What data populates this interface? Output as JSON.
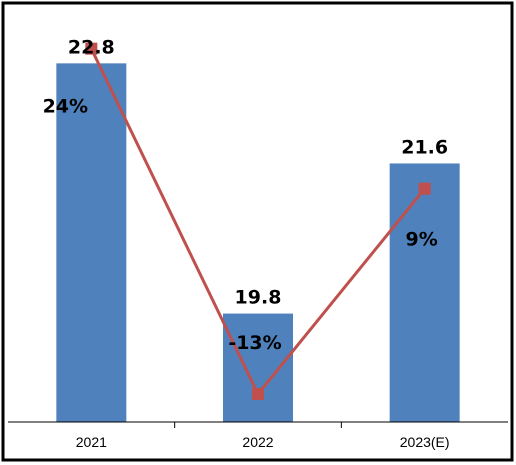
{
  "chart_data": {
    "type": "bar",
    "title": "",
    "xlabel": "",
    "ylabel": "",
    "categories": [
      "2021",
      "2022",
      "2023(E)"
    ],
    "series": [
      {
        "type": "bar",
        "values": [
          22.8,
          19.8,
          21.6
        ],
        "value_labels": [
          "22.8",
          "19.8",
          "21.6"
        ],
        "color": "#4F81BD"
      },
      {
        "type": "line",
        "values": [
          24,
          -13,
          9
        ],
        "value_labels": [
          "24%",
          "-13%",
          "9%"
        ],
        "color": "#C0504D",
        "marker": "square"
      }
    ],
    "bar_ylim": [
      18.5,
      23.2
    ],
    "line_ylim": [
      -16,
      26
    ],
    "grid": false,
    "legend": "none"
  }
}
